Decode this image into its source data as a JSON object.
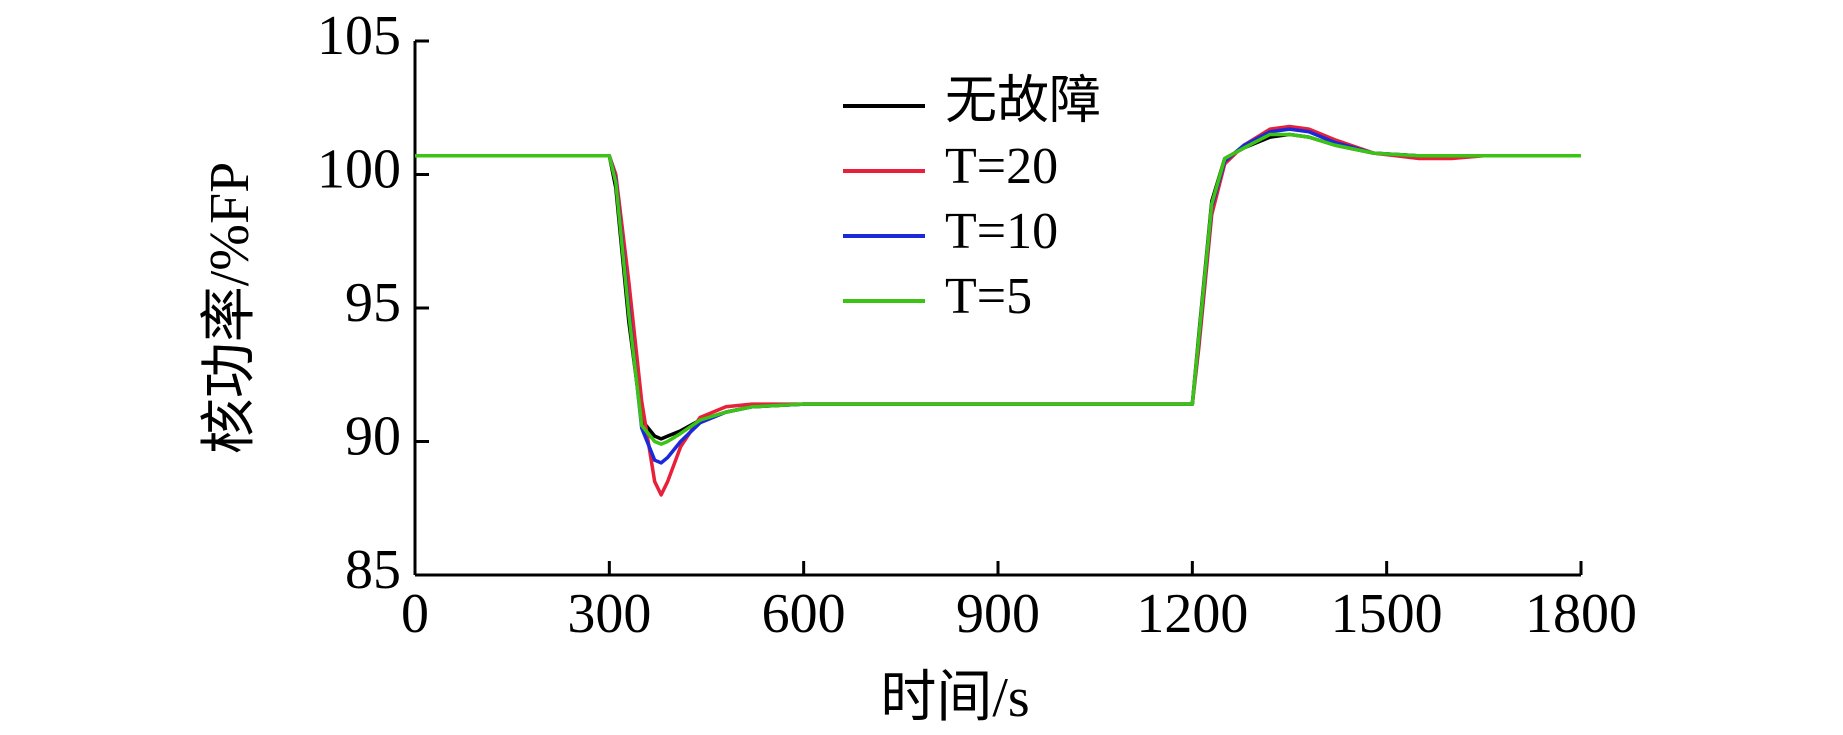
{
  "chart_data": {
    "type": "line",
    "xlabel": "时间/s",
    "ylabel": "核功率/%FP",
    "x": [
      0,
      300,
      310,
      330,
      350,
      370,
      380,
      390,
      410,
      440,
      480,
      520,
      600,
      1200,
      1210,
      1230,
      1250,
      1280,
      1320,
      1350,
      1380,
      1420,
      1480,
      1550,
      1600,
      1650,
      1800
    ],
    "series": [
      {
        "name": "无故障",
        "color": "#000000",
        "values": [
          100.7,
          100.7,
          99.5,
          94.5,
          90.8,
          90.2,
          90.1,
          90.2,
          90.4,
          90.8,
          91.1,
          91.3,
          91.4,
          91.4,
          94,
          99,
          100.6,
          101.0,
          101.4,
          101.5,
          101.4,
          101.1,
          100.8,
          100.7,
          100.7,
          100.7,
          100.7
        ]
      },
      {
        "name": "T=20",
        "color": "#e8203a",
        "values": [
          100.7,
          100.7,
          100.0,
          96,
          91.5,
          88.5,
          88.0,
          88.5,
          89.8,
          90.9,
          91.3,
          91.4,
          91.4,
          91.4,
          93.5,
          98.5,
          100.4,
          101.1,
          101.7,
          101.8,
          101.7,
          101.3,
          100.8,
          100.6,
          100.6,
          100.7,
          100.7
        ]
      },
      {
        "name": "T=10",
        "color": "#1a2ad8",
        "values": [
          100.7,
          100.7,
          99.8,
          95,
          90.5,
          89.3,
          89.2,
          89.4,
          90.0,
          90.7,
          91.1,
          91.3,
          91.4,
          91.4,
          93.8,
          98.8,
          100.5,
          101.1,
          101.6,
          101.7,
          101.6,
          101.2,
          100.8,
          100.7,
          100.7,
          100.7,
          100.7
        ]
      },
      {
        "name": "T=5",
        "color": "#3cc414",
        "values": [
          100.7,
          100.7,
          99.7,
          94.8,
          90.6,
          90.0,
          89.9,
          90.0,
          90.3,
          90.8,
          91.1,
          91.3,
          91.4,
          91.4,
          93.9,
          98.9,
          100.6,
          101.0,
          101.5,
          101.5,
          101.4,
          101.1,
          100.8,
          100.7,
          100.7,
          100.7,
          100.7
        ]
      }
    ],
    "xlim": [
      0,
      1800
    ],
    "xticks": [
      0,
      300,
      600,
      900,
      1200,
      1500,
      1800
    ],
    "ylim": [
      85,
      105
    ],
    "yticks": [
      85,
      90,
      95,
      100,
      105
    ],
    "legend": "upper center"
  }
}
